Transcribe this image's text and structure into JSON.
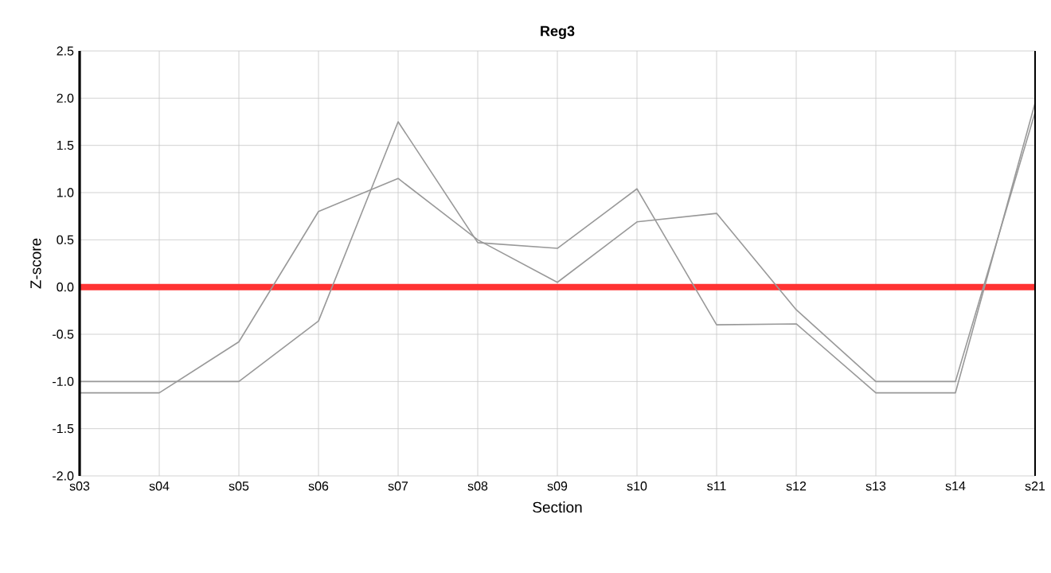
{
  "chart_data": {
    "type": "line",
    "title": "Reg3",
    "xlabel": "Section",
    "ylabel": "Z-score",
    "categories": [
      "s03",
      "s04",
      "s05",
      "s06",
      "s07",
      "s08",
      "s09",
      "s10",
      "s11",
      "s12",
      "s13",
      "s14",
      "s21"
    ],
    "series": [
      {
        "color": "#999999",
        "values": [
          -1.12,
          -1.12,
          -0.58,
          0.8,
          1.15,
          0.5,
          0.05,
          0.69,
          0.78,
          -0.24,
          -1.0,
          -1.0,
          1.85
        ]
      },
      {
        "color": "#999999",
        "values": [
          -1.0,
          -1.0,
          -1.0,
          -0.36,
          1.75,
          0.47,
          0.41,
          1.04,
          -0.4,
          -0.39,
          -1.12,
          -1.12,
          1.95
        ]
      }
    ],
    "ylim": [
      -2.0,
      2.5
    ],
    "yticks": [
      {
        "value": -2.0,
        "label": "-2.0"
      },
      {
        "value": -1.5,
        "label": "-1.5"
      },
      {
        "value": -1.0,
        "label": "-1.0"
      },
      {
        "value": -0.5,
        "label": "-0.5"
      },
      {
        "value": 0.0,
        "label": "0.0"
      },
      {
        "value": 0.5,
        "label": "0.5"
      },
      {
        "value": 1.0,
        "label": "1.0"
      },
      {
        "value": 1.5,
        "label": "1.5"
      },
      {
        "value": 2.0,
        "label": "2.0"
      },
      {
        "value": 2.5,
        "label": "2.5"
      }
    ],
    "grid": true,
    "marker": "none",
    "line_style": "solid",
    "ref_lines": [
      {
        "axis": "y",
        "value": 0,
        "color": "#ff3333"
      }
    ]
  }
}
